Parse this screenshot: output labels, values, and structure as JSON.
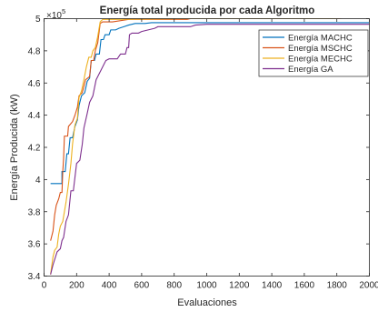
{
  "chart_data": {
    "type": "line",
    "title": "Energía total producida por cada Algoritmo",
    "xlabel": "Evaluaciones",
    "ylabel": "Energía Producida (kW)",
    "xlim": [
      0,
      2000
    ],
    "ylim": [
      340000,
      500000
    ],
    "y_exponent_label": "×10",
    "y_exponent_power": "5",
    "x_ticks": [
      0,
      200,
      400,
      600,
      800,
      1000,
      1200,
      1400,
      1600,
      1800,
      2000
    ],
    "x_tick_labels": [
      "0",
      "200",
      "400",
      "600",
      "800",
      "1000",
      "1200",
      "1400",
      "1600",
      "1800",
      "2000"
    ],
    "y_ticks": [
      340000,
      360000,
      380000,
      400000,
      420000,
      440000,
      460000,
      480000,
      500000
    ],
    "y_tick_labels": [
      "3.4",
      "3.6",
      "3.8",
      "4",
      "4.2",
      "4.4",
      "4.6",
      "4.8",
      "5"
    ],
    "grid": false,
    "legend_position": "top-right",
    "series": [
      {
        "name": "Energía MACHC",
        "color": "#0072BD",
        "points": [
          [
            40,
            397500
          ],
          [
            110,
            397500
          ],
          [
            110,
            405000
          ],
          [
            130,
            405000
          ],
          [
            140,
            416000
          ],
          [
            150,
            416000
          ],
          [
            160,
            426000
          ],
          [
            175,
            426000
          ],
          [
            190,
            433000
          ],
          [
            205,
            437000
          ],
          [
            215,
            446000
          ],
          [
            230,
            452000
          ],
          [
            250,
            454000
          ],
          [
            265,
            461000
          ],
          [
            280,
            463000
          ],
          [
            290,
            474000
          ],
          [
            310,
            474000
          ],
          [
            320,
            478000
          ],
          [
            340,
            478000
          ],
          [
            350,
            487000
          ],
          [
            365,
            487000
          ],
          [
            375,
            490000
          ],
          [
            400,
            490000
          ],
          [
            410,
            493000
          ],
          [
            440,
            493000
          ],
          [
            460,
            494000
          ],
          [
            490,
            495000
          ],
          [
            520,
            496000
          ],
          [
            560,
            497000
          ],
          [
            620,
            497000
          ],
          [
            660,
            497500
          ],
          [
            900,
            497500
          ],
          [
            940,
            497500
          ],
          [
            2000,
            497500
          ]
        ]
      },
      {
        "name": "Energía MSCHC",
        "color": "#D95319",
        "points": [
          [
            40,
            362000
          ],
          [
            55,
            368000
          ],
          [
            65,
            378000
          ],
          [
            75,
            384000
          ],
          [
            90,
            388000
          ],
          [
            100,
            392000
          ],
          [
            110,
            392000
          ],
          [
            115,
            405000
          ],
          [
            120,
            413000
          ],
          [
            125,
            427000
          ],
          [
            145,
            427000
          ],
          [
            150,
            433000
          ],
          [
            175,
            436000
          ],
          [
            190,
            440000
          ],
          [
            205,
            445000
          ],
          [
            215,
            452000
          ],
          [
            235,
            454000
          ],
          [
            255,
            462000
          ],
          [
            280,
            464000
          ],
          [
            290,
            474000
          ],
          [
            305,
            474000
          ],
          [
            315,
            480000
          ],
          [
            330,
            485000
          ],
          [
            345,
            497000
          ],
          [
            360,
            498000
          ],
          [
            420,
            498000
          ],
          [
            520,
            499500
          ],
          [
            880,
            499500
          ],
          [
            900,
            500000
          ],
          [
            1800,
            500000
          ],
          [
            1810,
            500000
          ],
          [
            1850,
            500500
          ],
          [
            2000,
            500500
          ]
        ]
      },
      {
        "name": "Energía MECHC",
        "color": "#EDB120",
        "points": [
          [
            40,
            341000
          ],
          [
            55,
            352000
          ],
          [
            65,
            356000
          ],
          [
            80,
            358000
          ],
          [
            90,
            366000
          ],
          [
            100,
            371000
          ],
          [
            115,
            374000
          ],
          [
            135,
            386000
          ],
          [
            150,
            397000
          ],
          [
            165,
            410000
          ],
          [
            175,
            422000
          ],
          [
            190,
            434000
          ],
          [
            205,
            438000
          ],
          [
            215,
            451000
          ],
          [
            230,
            455000
          ],
          [
            245,
            462000
          ],
          [
            260,
            470000
          ],
          [
            275,
            476000
          ],
          [
            290,
            476000
          ],
          [
            300,
            480000
          ],
          [
            315,
            482000
          ],
          [
            330,
            489000
          ],
          [
            345,
            498000
          ],
          [
            360,
            499500
          ],
          [
            380,
            499500
          ],
          [
            900,
            500000
          ],
          [
            1800,
            500000
          ],
          [
            1820,
            500500
          ],
          [
            2000,
            500500
          ]
        ]
      },
      {
        "name": "Energía GA",
        "color": "#7E2F8E",
        "points": [
          [
            40,
            341000
          ],
          [
            55,
            347000
          ],
          [
            80,
            355000
          ],
          [
            100,
            357000
          ],
          [
            110,
            362000
          ],
          [
            120,
            364000
          ],
          [
            135,
            374000
          ],
          [
            150,
            378000
          ],
          [
            165,
            393000
          ],
          [
            180,
            393000
          ],
          [
            200,
            410000
          ],
          [
            220,
            412000
          ],
          [
            235,
            422000
          ],
          [
            245,
            432000
          ],
          [
            265,
            441000
          ],
          [
            280,
            448000
          ],
          [
            300,
            452000
          ],
          [
            320,
            462000
          ],
          [
            340,
            466000
          ],
          [
            355,
            469000
          ],
          [
            370,
            472000
          ],
          [
            380,
            474000
          ],
          [
            400,
            475000
          ],
          [
            450,
            475000
          ],
          [
            470,
            478000
          ],
          [
            500,
            478000
          ],
          [
            510,
            482000
          ],
          [
            520,
            482000
          ],
          [
            525,
            490000
          ],
          [
            540,
            491000
          ],
          [
            580,
            491000
          ],
          [
            600,
            492000
          ],
          [
            640,
            493000
          ],
          [
            680,
            494000
          ],
          [
            700,
            495000
          ],
          [
            900,
            495000
          ],
          [
            930,
            496000
          ],
          [
            1000,
            496500
          ],
          [
            2000,
            496500
          ]
        ]
      }
    ]
  }
}
